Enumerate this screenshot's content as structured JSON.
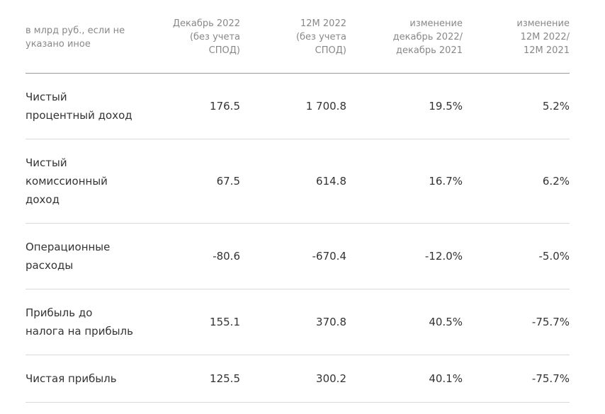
{
  "header": {
    "label": "в млрд руб., если не\nуказано иное",
    "col1": "Декабрь 2022\n(без учета\nСПОД)",
    "col2": "12М 2022\n(без учета\nСПОД)",
    "col3": "изменение\nдекабрь 2022/\nдекабрь 2021",
    "col4": "изменение\n12М 2022/\n12М 2021"
  },
  "rows": [
    {
      "label": "Чистый\nпроцентный доход",
      "dec2022": "176.5",
      "m12_2022": "1 700.8",
      "chg_dec": "19.5%",
      "chg_12m": "5.2%"
    },
    {
      "label": "Чистый\nкомиссионный\nдоход",
      "dec2022": "67.5",
      "m12_2022": "614.8",
      "chg_dec": "16.7%",
      "chg_12m": "6.2%"
    },
    {
      "label": "Операционные\nрасходы",
      "dec2022": "-80.6",
      "m12_2022": "-670.4",
      "chg_dec": "-12.0%",
      "chg_12m": "-5.0%"
    },
    {
      "label": "Прибыль до\nналога на прибыль",
      "dec2022": "155.1",
      "m12_2022": "370.8",
      "chg_dec": "40.5%",
      "chg_12m": "-75.7%"
    },
    {
      "label": "Чистая прибыль",
      "dec2022": "125.5",
      "m12_2022": "300.2",
      "chg_dec": "40.1%",
      "chg_12m": "-75.7%"
    }
  ]
}
